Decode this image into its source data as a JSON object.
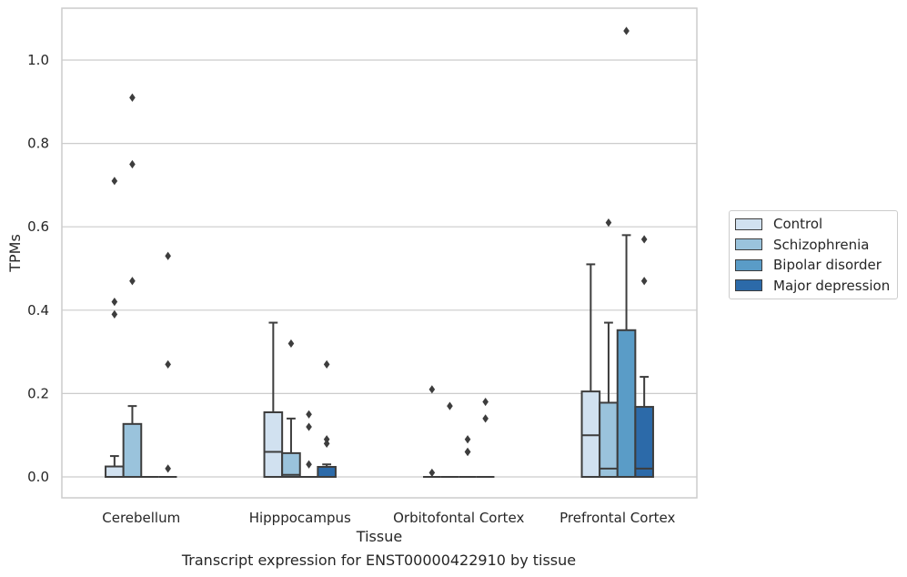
{
  "chart_data": {
    "type": "box",
    "title": "",
    "xlabel": "Tissue",
    "ylabel": "TPMs",
    "caption": "Transcript expression for ENST00000422910 by tissue",
    "ylim": [
      -0.05,
      1.13
    ],
    "yticks": [
      0.0,
      0.2,
      0.4,
      0.6,
      0.8,
      1.0
    ],
    "ytick_labels": [
      "0.0",
      "0.2",
      "0.4",
      "0.6",
      "0.8",
      "1.0"
    ],
    "categories": [
      "Cerebellum",
      "Hipppocampus",
      "Orbitofontal Cortex",
      "Prefrontal Cortex"
    ],
    "grid": true,
    "legend_position": "right",
    "series": [
      {
        "name": "Control",
        "color": "#d1e1f0",
        "boxes": [
          {
            "min": 0.0,
            "q1": 0.0,
            "median": 0.0,
            "q3": 0.025,
            "max": 0.05,
            "outliers": [
              0.39,
              0.42,
              0.71
            ]
          },
          {
            "min": 0.0,
            "q1": 0.0,
            "median": 0.06,
            "q3": 0.155,
            "max": 0.37,
            "outliers": []
          },
          {
            "min": 0.0,
            "q1": 0.0,
            "median": 0.0,
            "q3": 0.0,
            "max": 0.0,
            "outliers": [
              0.01,
              0.21
            ]
          },
          {
            "min": 0.0,
            "q1": 0.0,
            "median": 0.1,
            "q3": 0.205,
            "max": 0.51,
            "outliers": []
          }
        ]
      },
      {
        "name": "Schizophrenia",
        "color": "#9ac3dc",
        "boxes": [
          {
            "min": 0.0,
            "q1": 0.0,
            "median": 0.0,
            "q3": 0.127,
            "max": 0.17,
            "outliers": [
              0.47,
              0.75,
              0.91
            ]
          },
          {
            "min": 0.0,
            "q1": 0.0,
            "median": 0.005,
            "q3": 0.057,
            "max": 0.14,
            "outliers": [
              0.32
            ]
          },
          {
            "min": 0.0,
            "q1": 0.0,
            "median": 0.0,
            "q3": 0.0,
            "max": 0.0,
            "outliers": [
              0.17
            ]
          },
          {
            "min": 0.0,
            "q1": 0.0,
            "median": 0.02,
            "q3": 0.178,
            "max": 0.37,
            "outliers": [
              0.61
            ]
          }
        ]
      },
      {
        "name": "Bipolar disorder",
        "color": "#5a9cc7",
        "boxes": [
          {
            "min": 0.0,
            "q1": 0.0,
            "median": 0.0,
            "q3": 0.0,
            "max": 0.0,
            "outliers": []
          },
          {
            "min": 0.0,
            "q1": 0.0,
            "median": 0.0,
            "q3": 0.0,
            "max": 0.0,
            "outliers": [
              0.03,
              0.12,
              0.15
            ]
          },
          {
            "min": 0.0,
            "q1": 0.0,
            "median": 0.0,
            "q3": 0.0,
            "max": 0.0,
            "outliers": [
              0.06,
              0.06,
              0.09
            ]
          },
          {
            "min": 0.0,
            "q1": 0.0,
            "median": 0.0,
            "q3": 0.352,
            "max": 0.58,
            "outliers": [
              1.07
            ]
          }
        ]
      },
      {
        "name": "Major depression",
        "color": "#2c6aa9",
        "boxes": [
          {
            "min": 0.0,
            "q1": 0.0,
            "median": 0.0,
            "q3": 0.0,
            "max": 0.0,
            "outliers": [
              0.02,
              0.27,
              0.53
            ]
          },
          {
            "min": 0.0,
            "q1": 0.0,
            "median": 0.0,
            "q3": 0.024,
            "max": 0.03,
            "outliers": [
              0.08,
              0.09,
              0.27
            ]
          },
          {
            "min": 0.0,
            "q1": 0.0,
            "median": 0.0,
            "q3": 0.0,
            "max": 0.0,
            "outliers": [
              0.14,
              0.18
            ]
          },
          {
            "min": 0.0,
            "q1": 0.0,
            "median": 0.02,
            "q3": 0.168,
            "max": 0.24,
            "outliers": [
              0.47,
              0.57
            ]
          }
        ]
      }
    ]
  }
}
